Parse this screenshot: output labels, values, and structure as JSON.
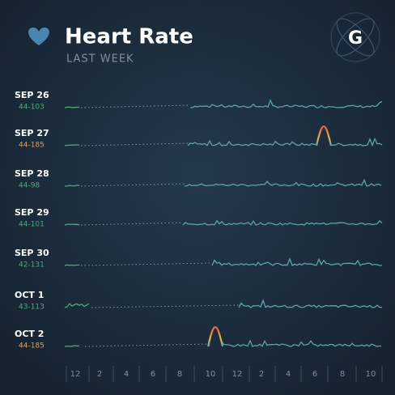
{
  "header": {
    "title": "Heart Rate",
    "subtitle": "LAST WEEK",
    "logo": "G"
  },
  "days": [
    {
      "date": "SEP 26",
      "range": "44-103",
      "range_color": "#4fa97a"
    },
    {
      "date": "SEP 27",
      "range": "44-185",
      "range_color": "#e8a04a"
    },
    {
      "date": "SEP 28",
      "range": "44-98",
      "range_color": "#4fa97a"
    },
    {
      "date": "SEP 29",
      "range": "44-101",
      "range_color": "#4fa97a"
    },
    {
      "date": "SEP 30",
      "range": "42-131",
      "range_color": "#4fa97a"
    },
    {
      "date": "OCT 1",
      "range": "43-113",
      "range_color": "#4fa97a"
    },
    {
      "date": "OCT 2",
      "range": "44-185",
      "range_color": "#e8a04a"
    }
  ],
  "x_axis": [
    "12",
    "2",
    "4",
    "6",
    "8",
    "10",
    "12",
    "2",
    "4",
    "6",
    "8",
    "10"
  ]
}
